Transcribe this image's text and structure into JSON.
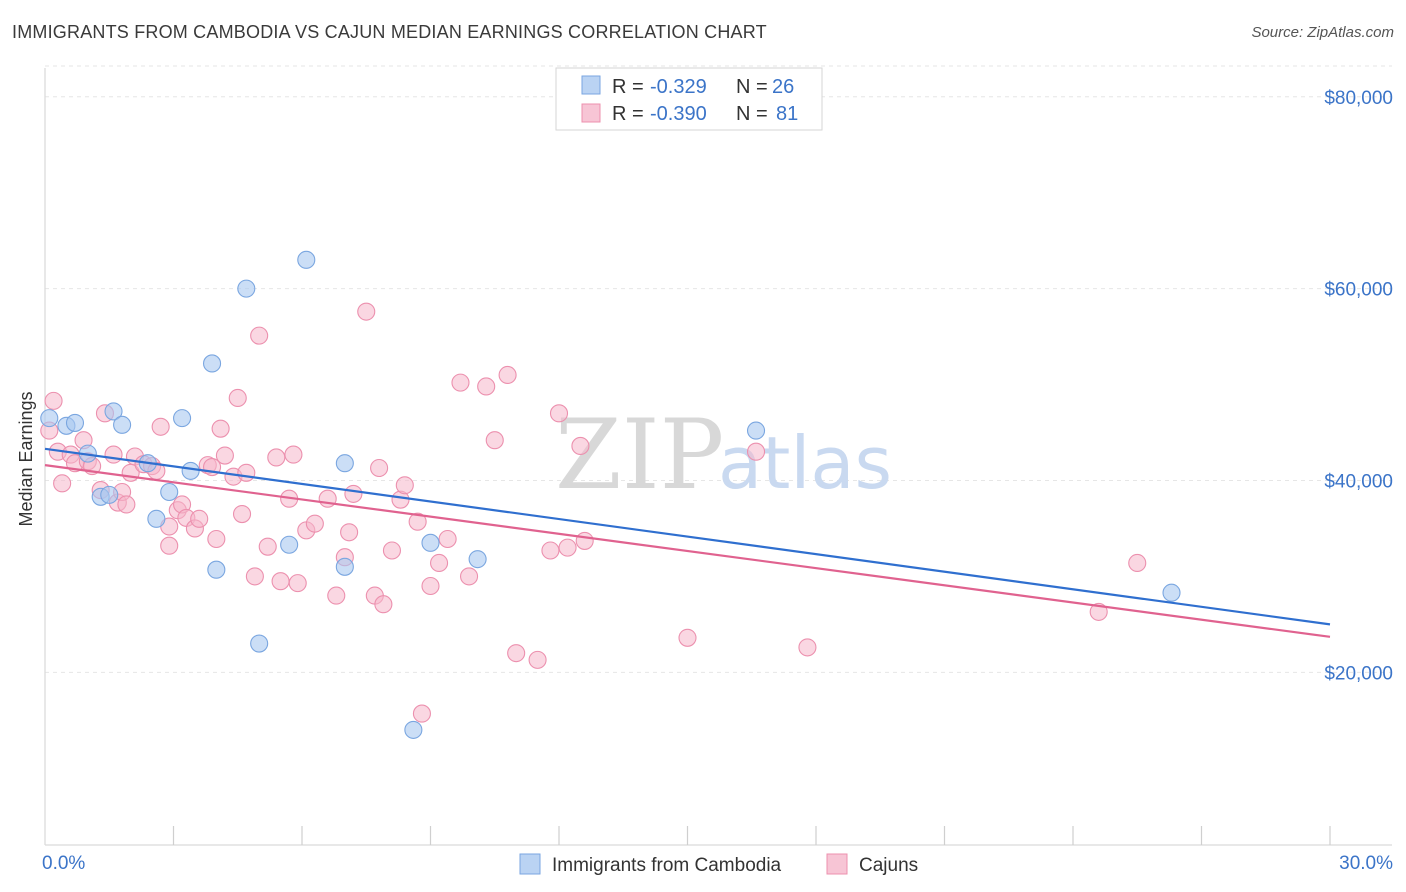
{
  "header": {
    "title": "IMMIGRANTS FROM CAMBODIA VS CAJUN MEDIAN EARNINGS CORRELATION CHART",
    "source": "Source: ZipAtlas.com"
  },
  "watermark": {
    "zip": "ZIP",
    "atlas": "atlas"
  },
  "legend": {
    "series1": {
      "r_label": "R = ",
      "r_value": "-0.329",
      "n_label": "N = ",
      "n_value": "26",
      "color": "#a9c8f0"
    },
    "series2": {
      "r_label": "R = ",
      "r_value": "-0.390",
      "n_label": "N = ",
      "n_value": "81",
      "color": "#f5b6cb"
    }
  },
  "bottom_legend": {
    "series1_label": "Immigrants from Cambodia",
    "series2_label": "Cajuns"
  },
  "chart_data": {
    "type": "scatter",
    "title": "IMMIGRANTS FROM CAMBODIA VS CAJUN MEDIAN EARNINGS CORRELATION CHART",
    "xlabel": "",
    "ylabel": "Median Earnings",
    "xlim": [
      0,
      30
    ],
    "ylim": [
      2000,
      83000
    ],
    "x_tick_labels": [
      "0.0%",
      "30.0%"
    ],
    "y_ticks": [
      20000,
      40000,
      60000,
      80000
    ],
    "y_tick_labels": [
      "$20,000",
      "$40,000",
      "$60,000",
      "$80,000"
    ],
    "grid": true,
    "series": [
      {
        "name": "Immigrants from Cambodia",
        "color": "#a9c8f0",
        "stroke": "#7aa6e0",
        "line_color": "#2f6fcf",
        "trend": {
          "x": [
            0,
            30
          ],
          "y": [
            43300,
            25000
          ]
        },
        "points": [
          [
            0.1,
            46500
          ],
          [
            0.5,
            45700
          ],
          [
            0.7,
            46000
          ],
          [
            1.0,
            42800
          ],
          [
            1.3,
            38300
          ],
          [
            1.5,
            38500
          ],
          [
            1.6,
            47200
          ],
          [
            1.8,
            45800
          ],
          [
            2.4,
            41800
          ],
          [
            2.6,
            36000
          ],
          [
            2.9,
            38800
          ],
          [
            3.2,
            46500
          ],
          [
            3.4,
            41000
          ],
          [
            3.9,
            52200
          ],
          [
            4.0,
            30700
          ],
          [
            4.7,
            60000
          ],
          [
            5.0,
            23000
          ],
          [
            5.7,
            33300
          ],
          [
            6.1,
            63000
          ],
          [
            7.0,
            31000
          ],
          [
            7.0,
            41800
          ],
          [
            8.6,
            14000
          ],
          [
            9.0,
            33500
          ],
          [
            10.1,
            31800
          ],
          [
            16.6,
            45200
          ],
          [
            26.3,
            28300
          ]
        ]
      },
      {
        "name": "Cajuns",
        "color": "#f5b6cb",
        "stroke": "#ec90ae",
        "line_color": "#e0628f",
        "trend": {
          "x": [
            0,
            30
          ],
          "y": [
            41600,
            23700
          ]
        },
        "points": [
          [
            0.1,
            45200
          ],
          [
            0.2,
            48300
          ],
          [
            0.3,
            43000
          ],
          [
            0.4,
            39700
          ],
          [
            0.6,
            42700
          ],
          [
            0.7,
            41800
          ],
          [
            0.9,
            44200
          ],
          [
            1.0,
            42000
          ],
          [
            1.1,
            41500
          ],
          [
            1.3,
            39000
          ],
          [
            1.4,
            47000
          ],
          [
            1.6,
            42700
          ],
          [
            1.7,
            37700
          ],
          [
            1.8,
            38800
          ],
          [
            1.9,
            37500
          ],
          [
            2.0,
            40800
          ],
          [
            2.1,
            42500
          ],
          [
            2.3,
            41700
          ],
          [
            2.5,
            41500
          ],
          [
            2.6,
            41000
          ],
          [
            2.7,
            45600
          ],
          [
            2.9,
            35200
          ],
          [
            2.9,
            33200
          ],
          [
            3.1,
            36900
          ],
          [
            3.2,
            37500
          ],
          [
            3.3,
            36100
          ],
          [
            3.5,
            35000
          ],
          [
            3.6,
            36000
          ],
          [
            3.8,
            41600
          ],
          [
            3.9,
            41400
          ],
          [
            4.0,
            33900
          ],
          [
            4.1,
            45400
          ],
          [
            4.2,
            42600
          ],
          [
            4.4,
            40400
          ],
          [
            4.5,
            48600
          ],
          [
            4.6,
            36500
          ],
          [
            4.7,
            40800
          ],
          [
            4.9,
            30000
          ],
          [
            5.0,
            55100
          ],
          [
            5.2,
            33100
          ],
          [
            5.4,
            42400
          ],
          [
            5.5,
            29500
          ],
          [
            5.7,
            38100
          ],
          [
            5.8,
            42700
          ],
          [
            5.9,
            29300
          ],
          [
            6.1,
            34800
          ],
          [
            6.3,
            35500
          ],
          [
            6.6,
            38100
          ],
          [
            6.8,
            28000
          ],
          [
            7.0,
            32000
          ],
          [
            7.1,
            34600
          ],
          [
            7.2,
            38600
          ],
          [
            7.5,
            57600
          ],
          [
            7.7,
            28000
          ],
          [
            7.8,
            41300
          ],
          [
            7.9,
            27100
          ],
          [
            8.1,
            32700
          ],
          [
            8.3,
            38000
          ],
          [
            8.4,
            39500
          ],
          [
            8.7,
            35700
          ],
          [
            8.8,
            15700
          ],
          [
            9.0,
            29000
          ],
          [
            9.2,
            31400
          ],
          [
            9.4,
            33900
          ],
          [
            9.7,
            50200
          ],
          [
            9.9,
            30000
          ],
          [
            10.3,
            49800
          ],
          [
            10.5,
            44200
          ],
          [
            10.8,
            51000
          ],
          [
            11.0,
            22000
          ],
          [
            11.5,
            21300
          ],
          [
            11.8,
            32700
          ],
          [
            12.0,
            47000
          ],
          [
            12.2,
            33000
          ],
          [
            12.5,
            43600
          ],
          [
            12.6,
            33700
          ],
          [
            15.0,
            23600
          ],
          [
            16.6,
            43000
          ],
          [
            17.8,
            22600
          ],
          [
            24.6,
            26300
          ],
          [
            25.5,
            31400
          ]
        ]
      }
    ]
  }
}
